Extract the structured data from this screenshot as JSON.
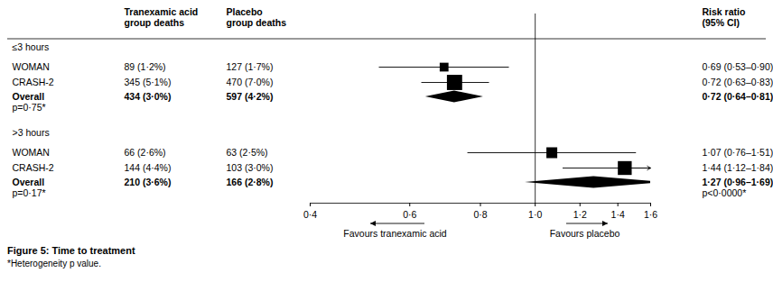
{
  "chart_data": {
    "type": "forest",
    "title": "Figure 5: Time to treatment",
    "footnote": "*Heterogeneity p value.",
    "headers": [
      [
        "Tranexamic acid",
        "group deaths"
      ],
      [
        "Placebo",
        "group deaths"
      ],
      [
        "Risk ratio",
        "(95% CI)"
      ]
    ],
    "groups": [
      {
        "name": "≤3 hours",
        "studies": [
          {
            "name": "WOMAN",
            "txa_deaths": "89 (1·2%)",
            "placebo_deaths": "127 (1·7%)",
            "rr": 0.69,
            "ci": [
              0.53,
              0.9
            ],
            "value_label": "0·69 (0·53–0·90)",
            "weight": 25
          },
          {
            "name": "CRASH-2",
            "txa_deaths": "345 (5·1%)",
            "placebo_deaths": "470 (7·0%)",
            "rr": 0.72,
            "ci": [
              0.63,
              0.83
            ],
            "value_label": "0·72 (0·63–0·83)",
            "weight": 75
          }
        ],
        "overall": {
          "name": "Overall",
          "txa_deaths": "434 (3·0%)",
          "placebo_deaths": "597 (4·2%)",
          "rr": 0.72,
          "ci": [
            0.64,
            0.81
          ],
          "value_label": "0·72 (0·64–0·81)"
        },
        "heterogeneity": "p=0·75*"
      },
      {
        "name": ">3 hours",
        "studies": [
          {
            "name": "WOMAN",
            "txa_deaths": "66 (2·6%)",
            "placebo_deaths": "63 (2·5%)",
            "rr": 1.07,
            "ci": [
              0.76,
              1.51
            ],
            "value_label": "1·07 (0·76–1·51)",
            "weight": 38
          },
          {
            "name": "CRASH-2",
            "txa_deaths": "144 (4·4%)",
            "placebo_deaths": "103 (3·0%)",
            "rr": 1.44,
            "ci": [
              1.12,
              1.84
            ],
            "value_label": "1·44 (1·12–1·84)",
            "weight": 62
          }
        ],
        "overall": {
          "name": "Overall",
          "txa_deaths": "210 (3·6%)",
          "placebo_deaths": "166 (2·8%)",
          "rr": 1.27,
          "ci": [
            0.96,
            1.69
          ],
          "value_label": "1·27 (0·96–1·69)"
        },
        "heterogeneity": "p=0·17*"
      }
    ],
    "interaction_p": "p<0·0000*",
    "log": "x",
    "xlim": [
      0.4,
      1.6
    ],
    "xticks": [
      {
        "value": 0.4,
        "label": "0·4"
      },
      {
        "value": 0.6,
        "label": "0·6"
      },
      {
        "value": 0.8,
        "label": "0·8"
      },
      {
        "value": 1.0,
        "label": "1·0"
      },
      {
        "value": 1.2,
        "label": "1·2"
      },
      {
        "value": 1.4,
        "label": "1·4"
      },
      {
        "value": 1.6,
        "label": "1·6"
      }
    ],
    "reference": 1,
    "xlabels": [
      "Favours tranexamic acid",
      "Favours placebo"
    ],
    "color": "#000000"
  }
}
